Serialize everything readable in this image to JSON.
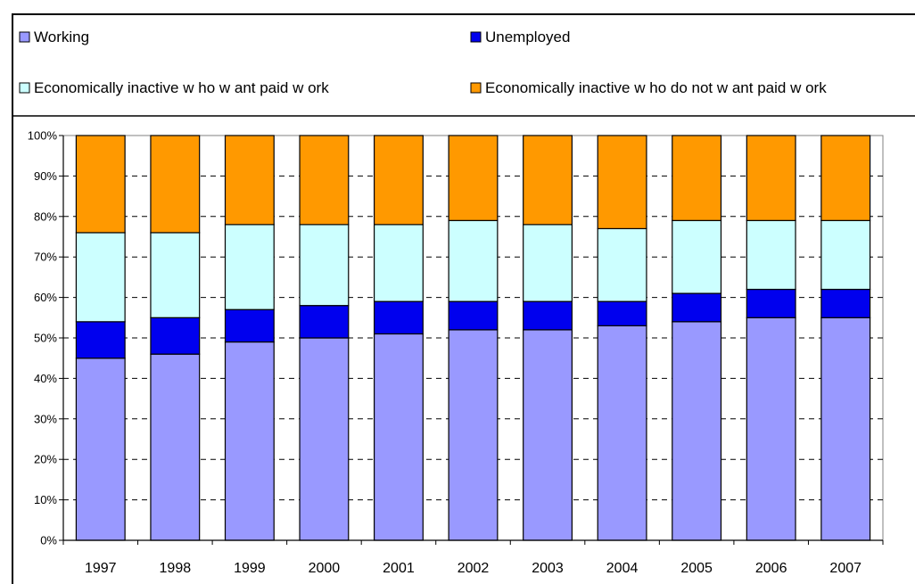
{
  "chart_data": {
    "type": "bar",
    "stacked": true,
    "percent": true,
    "title": "",
    "xlabel": "",
    "ylabel": "",
    "ylim": [
      0,
      100
    ],
    "y_ticks": [
      "0%",
      "10%",
      "20%",
      "30%",
      "40%",
      "50%",
      "60%",
      "70%",
      "80%",
      "90%",
      "100%"
    ],
    "grid": true,
    "legend_position": "top",
    "categories": [
      "1997",
      "1998",
      "1999",
      "2000",
      "2001",
      "2002",
      "2003",
      "2004",
      "2005",
      "2006",
      "2007"
    ],
    "series": [
      {
        "name": "Working",
        "color": "#9999ff",
        "values": [
          45,
          46,
          49,
          50,
          51,
          52,
          52,
          53,
          54,
          55,
          55
        ]
      },
      {
        "name": "Unemployed",
        "color": "#0000ee",
        "values": [
          9,
          9,
          8,
          8,
          8,
          7,
          7,
          6,
          7,
          7,
          7
        ]
      },
      {
        "name": "Economically inactive w ho w ant paid w ork",
        "color": "#ccffff",
        "values": [
          22,
          21,
          21,
          20,
          19,
          20,
          19,
          18,
          18,
          17,
          17
        ]
      },
      {
        "name": "Economically inactive w ho do not w ant paid w ork",
        "color": "#ff9900",
        "values": [
          24,
          24,
          22,
          22,
          22,
          21,
          22,
          23,
          21,
          21,
          21
        ]
      }
    ]
  }
}
